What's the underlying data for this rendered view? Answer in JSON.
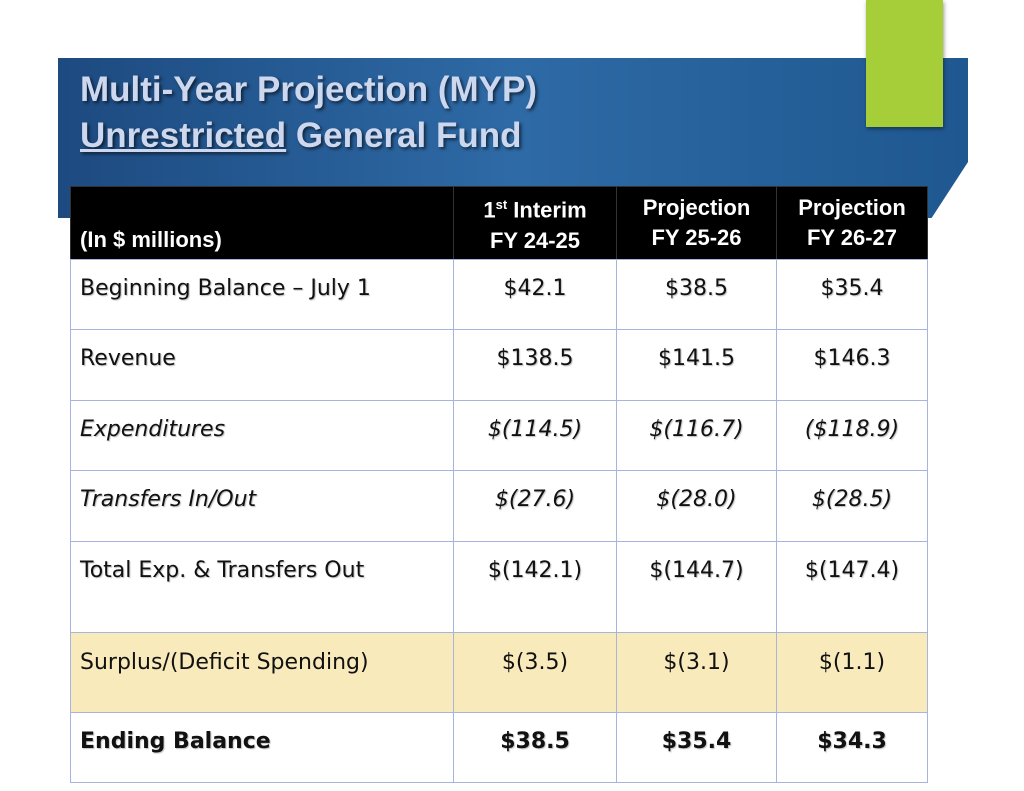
{
  "header": {
    "title_line1": "Multi-Year Projection (MYP)",
    "title_line2_underlined": "Unrestricted",
    "title_line2_rest": "General Fund"
  },
  "table": {
    "corner": "(In $ millions)",
    "columns": [
      {
        "lead": "1",
        "sup": "st",
        "text": "Interim",
        "period": "FY 24-25"
      },
      {
        "text": "Projection",
        "period": "FY 25-26"
      },
      {
        "text": "Projection",
        "period": "FY 26-27"
      }
    ],
    "rows": [
      [
        "Beginning Balance – July 1",
        "$42.1",
        "$38.5",
        "$35.4"
      ],
      [
        "Revenue",
        "$138.5",
        "$141.5",
        "$146.3"
      ],
      [
        "Expenditures",
        "$(114.5)",
        "$(116.7)",
        "($118.9)"
      ],
      [
        "Transfers In/Out",
        "$(27.6)",
        "$(28.0)",
        "$(28.5)"
      ],
      [
        "Total Exp. & Transfers Out",
        "$(142.1)",
        "$(144.7)",
        "$(147.4)"
      ],
      [
        "Surplus/(Deficit Spending)",
        "$(3.5)",
        "$(3.1)",
        "$(1.1)"
      ],
      [
        "Ending Balance",
        "$38.5",
        "$35.4",
        "$34.3"
      ]
    ]
  }
}
